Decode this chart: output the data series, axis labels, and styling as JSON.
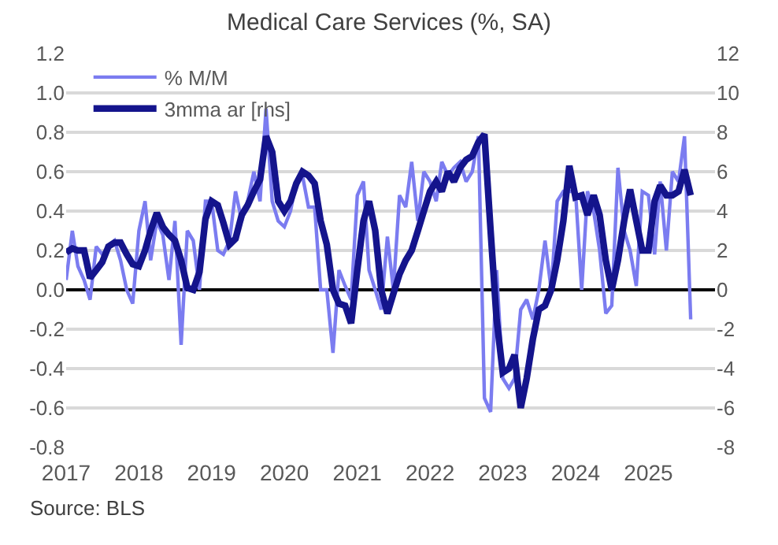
{
  "chart_data": {
    "type": "line",
    "title": "Medical Care Services (%, SA)",
    "x": [
      "2017-01",
      "2017-02",
      "2017-03",
      "2017-04",
      "2017-05",
      "2017-06",
      "2017-07",
      "2017-08",
      "2017-09",
      "2017-10",
      "2017-11",
      "2017-12",
      "2018-01",
      "2018-02",
      "2018-03",
      "2018-04",
      "2018-05",
      "2018-06",
      "2018-07",
      "2018-08",
      "2018-09",
      "2018-10",
      "2018-11",
      "2018-12",
      "2019-01",
      "2019-02",
      "2019-03",
      "2019-04",
      "2019-05",
      "2019-06",
      "2019-07",
      "2019-08",
      "2019-09",
      "2019-10",
      "2019-11",
      "2019-12",
      "2020-01",
      "2020-02",
      "2020-03",
      "2020-04",
      "2020-05",
      "2020-06",
      "2020-07",
      "2020-08",
      "2020-09",
      "2020-10",
      "2020-11",
      "2020-12",
      "2021-01",
      "2021-02",
      "2021-03",
      "2021-04",
      "2021-05",
      "2021-06",
      "2021-07",
      "2021-08",
      "2021-09",
      "2021-10",
      "2021-11",
      "2021-12",
      "2022-01",
      "2022-02",
      "2022-03",
      "2022-04",
      "2022-05",
      "2022-06",
      "2022-07",
      "2022-08",
      "2022-09",
      "2022-10",
      "2022-11",
      "2022-12",
      "2023-01",
      "2023-02",
      "2023-03",
      "2023-04",
      "2023-05",
      "2023-06",
      "2023-07",
      "2023-08",
      "2023-09",
      "2023-10",
      "2023-11",
      "2023-12",
      "2024-01",
      "2024-02",
      "2024-03",
      "2024-04",
      "2024-05",
      "2024-06",
      "2024-07",
      "2024-08",
      "2024-09",
      "2024-10",
      "2024-11",
      "2024-12",
      "2025-01",
      "2025-02",
      "2025-03",
      "2025-04",
      "2025-05",
      "2025-06",
      "2025-07",
      "2025-08"
    ],
    "series": [
      {
        "name": "% M/M",
        "color": "#7b7cf0",
        "values": [
          0.05,
          0.3,
          0.12,
          0.05,
          -0.05,
          0.22,
          0.18,
          0.22,
          0.25,
          0.15,
          0.0,
          -0.07,
          0.3,
          0.45,
          0.15,
          0.35,
          0.28,
          0.05,
          0.35,
          -0.28,
          0.3,
          0.25,
          0.0,
          0.45,
          0.45,
          0.2,
          0.18,
          0.25,
          0.5,
          0.35,
          0.45,
          0.6,
          0.45,
          0.92,
          0.45,
          0.35,
          0.32,
          0.4,
          0.55,
          0.58,
          0.42,
          0.42,
          0.0,
          0.0,
          -0.32,
          0.1,
          0.02,
          -0.05,
          0.48,
          0.55,
          0.1,
          0.0,
          -0.1,
          0.27,
          0.0,
          0.48,
          0.42,
          0.65,
          0.35,
          0.6,
          0.55,
          0.45,
          0.65,
          0.58,
          0.62,
          0.65,
          0.55,
          0.6,
          0.78,
          -0.55,
          -0.62,
          0.1,
          -0.45,
          -0.5,
          -0.45,
          -0.1,
          -0.05,
          -0.15,
          0.0,
          0.25,
          0.0,
          0.45,
          0.5,
          0.5,
          0.5,
          0.0,
          0.5,
          0.4,
          0.2,
          -0.12,
          -0.08,
          0.62,
          0.3,
          0.2,
          0.02,
          0.5,
          0.48,
          0.18,
          0.55,
          0.2,
          0.6,
          0.55,
          0.78,
          -0.15
        ]
      },
      {
        "name": "3mma ar [rhs]",
        "color": "#14148c",
        "axis": "y2",
        "values": [
          1.9,
          2.1,
          2.0,
          2.0,
          0.6,
          1.0,
          1.4,
          2.2,
          2.4,
          2.4,
          1.8,
          1.3,
          1.2,
          2.0,
          3.0,
          3.9,
          3.2,
          2.8,
          2.5,
          1.5,
          0.1,
          0.0,
          0.9,
          3.6,
          4.5,
          4.3,
          3.4,
          2.3,
          2.6,
          3.8,
          4.3,
          5.0,
          5.6,
          7.8,
          7.0,
          4.5,
          4.0,
          4.5,
          5.4,
          6.0,
          5.8,
          5.4,
          3.5,
          2.3,
          0.0,
          -0.7,
          -0.8,
          -1.7,
          1.0,
          3.5,
          4.5,
          3.0,
          0.0,
          -1.2,
          -0.2,
          0.8,
          1.5,
          2.0,
          3.0,
          4.0,
          5.0,
          5.5,
          5.0,
          6.0,
          5.5,
          6.2,
          6.6,
          6.8,
          7.5,
          7.9,
          3.0,
          -1.5,
          -4.2,
          -4.0,
          -3.3,
          -6.0,
          -4.5,
          -2.5,
          -1.0,
          -0.8,
          0.0,
          1.5,
          3.5,
          6.3,
          4.7,
          4.8,
          3.8,
          4.8,
          3.8,
          1.5,
          0.0,
          1.5,
          3.5,
          5.1,
          3.5,
          2.0,
          2.0,
          4.5,
          5.3,
          4.8,
          4.8,
          5.0,
          6.1,
          4.8
        ]
      }
    ],
    "xlim": [
      "2017-01",
      "2025-12"
    ],
    "xticks": [
      "2017",
      "2018",
      "2019",
      "2020",
      "2021",
      "2022",
      "2023",
      "2024",
      "2025"
    ],
    "ylim": [
      -0.8,
      1.2
    ],
    "yticks": [
      {
        "value": -0.8,
        "label": "-0.8"
      },
      {
        "value": -0.6,
        "label": "-0.6"
      },
      {
        "value": -0.4,
        "label": "-0.4"
      },
      {
        "value": -0.2,
        "label": "-0.2"
      },
      {
        "value": 0,
        "label": "0.0"
      },
      {
        "value": 0.2,
        "label": "0.2"
      },
      {
        "value": 0.4,
        "label": "0.4"
      },
      {
        "value": 0.6,
        "label": "0.6"
      },
      {
        "value": 0.8,
        "label": "0.8"
      },
      {
        "value": 1,
        "label": "1.0"
      },
      {
        "value": 1.2,
        "label": "1.2"
      }
    ],
    "y2lim": [
      -8,
      12
    ],
    "y2ticks": [
      -8,
      -6,
      -4,
      -2,
      0,
      2,
      4,
      6,
      8,
      10,
      12
    ],
    "ref_lines": [
      {
        "axis": "y",
        "value": 0,
        "color": "#000000"
      }
    ],
    "grid": "y",
    "legend": "top left",
    "marker": "none",
    "line_style": "solid",
    "annotations": [
      "Source: BLS"
    ]
  }
}
